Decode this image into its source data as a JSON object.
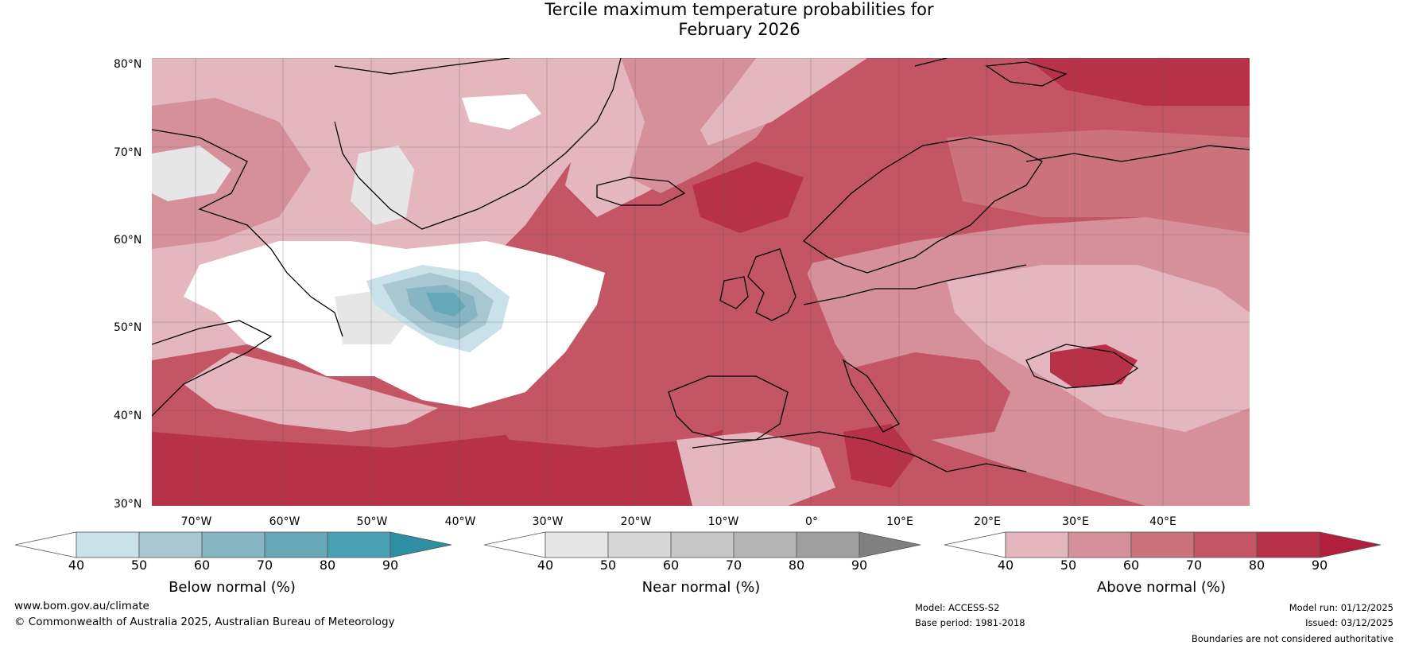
{
  "title": {
    "line1": "Tercile maximum temperature probabilities for",
    "line2": "February 2026"
  },
  "axes": {
    "lat_labels": [
      "80°N",
      "70°N",
      "60°N",
      "50°N",
      "40°N",
      "30°N"
    ],
    "lon_labels": [
      "70°W",
      "60°W",
      "50°W",
      "40°W",
      "30°W",
      "20°W",
      "10°W",
      "0°",
      "10°E",
      "20°E",
      "30°E",
      "40°E"
    ]
  },
  "colorbars": [
    {
      "title": "Below normal (%)",
      "ticks": [
        "40",
        "50",
        "60",
        "70",
        "80",
        "90"
      ],
      "colors": [
        "#ffffff",
        "#c9e1e8",
        "#a7c8d0",
        "#87b5c3",
        "#67a8b8",
        "#49a2b4",
        "#2e8fa3"
      ]
    },
    {
      "title": "Near normal (%)",
      "ticks": [
        "40",
        "50",
        "60",
        "70",
        "80",
        "90"
      ],
      "colors": [
        "#ffffff",
        "#e6e6e6",
        "#d7d7d7",
        "#c7c7c7",
        "#b4b4b4",
        "#9f9f9f",
        "#808080"
      ]
    },
    {
      "title": "Above normal (%)",
      "ticks": [
        "40",
        "50",
        "60",
        "70",
        "80",
        "90"
      ],
      "colors": [
        "#ffffff",
        "#e3b7bd",
        "#d6909a",
        "#cb727d",
        "#c35565",
        "#b73248",
        "#b21f3c"
      ]
    }
  ],
  "footer": {
    "website": "www.bom.gov.au/climate",
    "copyright": "© Commonwealth of Australia 2025, Australian Bureau of Meteorology",
    "model": "Model: ACCESS-S2",
    "base_period": "Base period: 1981-2018",
    "model_run": "Model run: 01/12/2025",
    "issued": "Issued: 03/12/2025",
    "disclaimer": "Boundaries are not considered authoritative"
  },
  "map_colors": {
    "above_40": "#e3b7bd",
    "above_50": "#d6909a",
    "above_60": "#cb727d",
    "above_70": "#c35565",
    "above_80": "#b73248",
    "near_40": "#e6e6e6",
    "below_50": "#a7c8d0",
    "below_60": "#87b5c3",
    "below_70": "#67a8b8",
    "white": "#ffffff"
  }
}
